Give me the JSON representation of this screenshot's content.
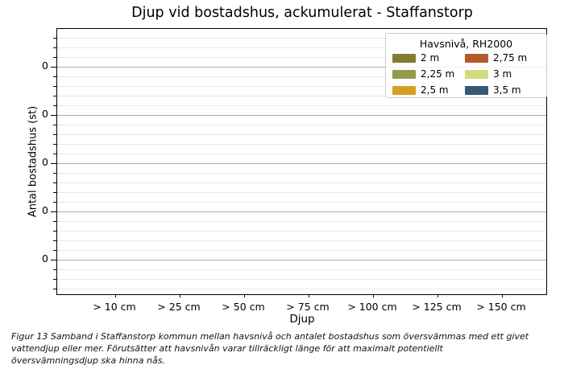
{
  "figure": {
    "caption_lines": [
      "Figur 13 Samband i Staffanstorp kommun mellan havsnivå och antalet bostadshus som översvämmas med ett givet",
      "vattendjup eller mer. Förutsätter att havsnivån varar tillräckligt länge för att maximalt potentiellt",
      "översvämningsdjup ska hinna nås."
    ]
  },
  "chart_data": {
    "type": "bar",
    "title": "Djup vid bostadshus, ackumulerat - Staffanstorp",
    "xlabel": "Djup",
    "ylabel": "Antal bostadshus (st)",
    "categories": [
      "> 10 cm",
      "> 25 cm",
      "> 50 cm",
      "> 75 cm",
      "> 100 cm",
      "> 125 cm",
      "> 150 cm"
    ],
    "y_tick_labels": [
      "0",
      "0",
      "0",
      "0",
      "0"
    ],
    "grid": "horizontal, major and minor lines on",
    "legend_title": "Havsnivå, RH2000",
    "legend_position": "upper right, two columns",
    "series": [
      {
        "name": "2 m",
        "color": "#857a33",
        "values": [
          0,
          0,
          0,
          0,
          0,
          0,
          0
        ]
      },
      {
        "name": "2,25 m",
        "color": "#939a4b",
        "values": [
          0,
          0,
          0,
          0,
          0,
          0,
          0
        ]
      },
      {
        "name": "2,5 m",
        "color": "#d5a021",
        "values": [
          0,
          0,
          0,
          0,
          0,
          0,
          0
        ]
      },
      {
        "name": "2,75 m",
        "color": "#b5592b",
        "values": [
          0,
          0,
          0,
          0,
          0,
          0,
          0
        ]
      },
      {
        "name": "3 m",
        "color": "#d3db80",
        "values": [
          0,
          0,
          0,
          0,
          0,
          0,
          0
        ]
      },
      {
        "name": "3,5 m",
        "color": "#325a70",
        "values": [
          0,
          0,
          0,
          0,
          0,
          0,
          0
        ]
      }
    ],
    "colors": {
      "axis_spine": "#000000",
      "major_grid": "#ababab",
      "minor_grid": "#e8e8e8",
      "background": "#ffffff"
    }
  }
}
